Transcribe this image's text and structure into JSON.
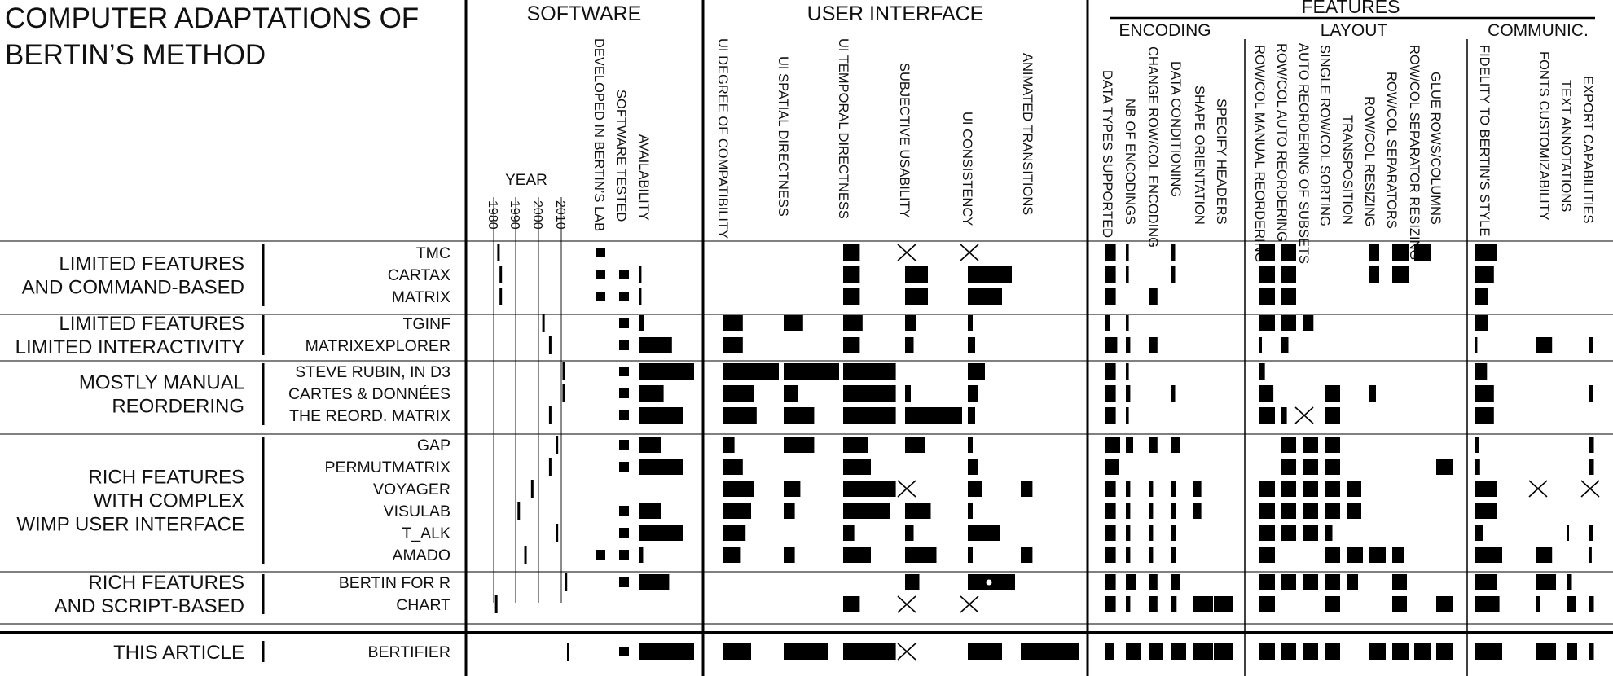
{
  "title_lines": [
    "COMPUTER ADAPTATIONS OF",
    "BERTIN’S METHOD"
  ],
  "chart_data": {
    "type": "table",
    "sections": [
      "SOFTWARE",
      "USER INTERFACE",
      "FEATURES"
    ],
    "feature_groups": [
      "ENCODING",
      "LAYOUT",
      "COMMUNIC."
    ],
    "year_label": "YEAR",
    "year_ticks": [
      "1980",
      "1990",
      "2000",
      "2010"
    ],
    "columns": {
      "software": [
        "DEVELOPED IN BERTIN’S LAB",
        "SOFTWARE TESTED",
        "AVAILABILITY"
      ],
      "ui": [
        "UI DEGREE OF COMPATIBILITY",
        "UI SPATIAL DIRECTNESS",
        "UI TEMPORAL DIRECTNESS",
        "SUBJECTIVE USABILITY",
        "UI CONSISTENCY",
        "ANIMATED TRANSITIONS"
      ],
      "encoding": [
        "DATA TYPES SUPPORTED",
        "NB OF ENCODINGS",
        "CHANGE ROW/COL ENCODING",
        "DATA CONDITIONING",
        "SHAPE ORIENTATION",
        "SPECIFY HEADERS"
      ],
      "layout": [
        "ROW/COL MANUAL REORDERING",
        "ROW/COL AUTO REORDERING",
        "AUTO REORDERING OF SUBSETS",
        "SINGLE ROW/COL SORTING",
        "TRANSPOSITION",
        "ROW/COL RESIZING",
        "ROW/COL SEPARATORS",
        "ROW/COL SEPARATOR RESIZING",
        "GLUE ROWS/COLUMNS"
      ],
      "communic": [
        "FIDELITY TO BERTIN’S STYLE",
        "FONTS CUSTOMIZABILITY",
        "TEXT ANNOTATIONS",
        "EXPORT CAPABILITIES"
      ]
    },
    "categories": [
      {
        "label": [
          "LIMITED FEATURES",
          "AND COMMAND-BASED"
        ],
        "rows": [
          0,
          2
        ]
      },
      {
        "label": [
          "LIMITED FEATURES",
          "LIMITED INTERACTIVITY"
        ],
        "rows": [
          3,
          4
        ]
      },
      {
        "label": [
          "MOSTLY MANUAL",
          "REORDERING"
        ],
        "rows": [
          5,
          7
        ]
      },
      {
        "label": [
          "RICH FEATURES",
          "WITH COMPLEX",
          "WIMP USER INTERFACE"
        ],
        "rows": [
          8,
          13
        ]
      },
      {
        "label": [
          "RICH FEATURES",
          "AND SCRIPT-BASED"
        ],
        "rows": [
          14,
          15
        ]
      },
      {
        "label": [
          "THIS ARTICLE"
        ],
        "rows": [
          16,
          16
        ]
      }
    ],
    "systems": [
      {
        "name": "TMC",
        "year": 1982,
        "dev": 1,
        "tested": 0,
        "avail": 0,
        "ui": [
          0,
          0,
          0.3,
          "x",
          "x",
          0
        ],
        "enc": [
          0.7,
          0.2,
          0,
          0.25,
          0,
          0
        ],
        "lay": [
          1,
          1,
          0,
          0,
          0,
          0.6,
          1,
          1,
          0
        ],
        "com": [
          0.8,
          0,
          0,
          0
        ]
      },
      {
        "name": "CARTAX",
        "year": 1983,
        "dev": 1,
        "tested": 1,
        "avail": 0.05,
        "ui": [
          0,
          0,
          0.3,
          0.4,
          0.9,
          0
        ],
        "enc": [
          0.7,
          0.2,
          0,
          0.25,
          0,
          0
        ],
        "lay": [
          1,
          1,
          0,
          0,
          0,
          0.6,
          1,
          0,
          0
        ],
        "com": [
          0.7,
          0,
          0,
          0
        ]
      },
      {
        "name": "MATRIX",
        "year": 1983,
        "dev": 1,
        "tested": 1,
        "avail": 0.05,
        "ui": [
          0,
          0,
          0.3,
          0.4,
          0.7,
          0
        ],
        "enc": [
          0.7,
          0,
          0.6,
          0,
          0,
          0
        ],
        "lay": [
          1,
          1,
          0,
          0,
          0,
          0,
          0,
          0,
          0
        ],
        "com": [
          0.5,
          0,
          0,
          0
        ]
      },
      {
        "name": "TGINF",
        "year": 2002,
        "dev": 0,
        "tested": 1,
        "avail": 0.1,
        "ui": [
          0.35,
          0.35,
          0.35,
          0.2,
          0.1,
          0
        ],
        "enc": [
          0.3,
          0.2,
          0,
          0,
          0,
          0
        ],
        "lay": [
          1,
          1,
          0.7,
          0,
          0,
          0,
          0,
          0,
          0
        ],
        "com": [
          0.5,
          0,
          0,
          0
        ]
      },
      {
        "name": "MATRIXEXPLORER",
        "year": 2005,
        "dev": 0,
        "tested": 1,
        "avail": 0.6,
        "ui": [
          0.35,
          0,
          0.3,
          0.15,
          0.15,
          0
        ],
        "enc": [
          0.8,
          0.3,
          0.6,
          0,
          0,
          0
        ],
        "lay": [
          0.1,
          0.5,
          0,
          0,
          0,
          0,
          0,
          0,
          0
        ],
        "com": [
          0.1,
          0.8,
          0,
          0.4
        ]
      },
      {
        "name": "STEVE RUBIN, IN D3",
        "year": 2011,
        "dev": 0,
        "tested": 1,
        "avail": 1,
        "ui": [
          1,
          1,
          0.95,
          0,
          0.35,
          0
        ],
        "enc": [
          0.7,
          0.2,
          0,
          0,
          0,
          0
        ],
        "lay": [
          0.35,
          0,
          0,
          0,
          0,
          0,
          0,
          0,
          0
        ],
        "com": [
          0.45,
          0,
          0,
          0
        ]
      },
      {
        "name": "CARTES & DONNÉES",
        "year": 2011,
        "dev": 0,
        "tested": 1,
        "avail": 0.45,
        "ui": [
          0.55,
          0.25,
          0.95,
          0.1,
          0.2,
          0
        ],
        "enc": [
          0.7,
          0.3,
          0,
          0.25,
          0,
          0
        ],
        "lay": [
          0.9,
          0,
          0,
          1,
          0,
          0.4,
          0,
          0,
          0
        ],
        "com": [
          0.7,
          0,
          0,
          0.4
        ]
      },
      {
        "name": "THE REORD. MATRIX",
        "year": 2005,
        "dev": 0,
        "tested": 1,
        "avail": 0.8,
        "ui": [
          0.6,
          0.55,
          0.95,
          1,
          0.15,
          0
        ],
        "enc": [
          0.7,
          0.2,
          0,
          0,
          0,
          0
        ],
        "lay": [
          1,
          0.4,
          "x",
          1,
          0,
          0,
          0,
          0,
          0
        ],
        "com": [
          0.7,
          0,
          0,
          0
        ]
      },
      {
        "name": "GAP",
        "year": 2008,
        "dev": 0,
        "tested": 1,
        "avail": 0.4,
        "ui": [
          0.2,
          0.55,
          0.45,
          0.35,
          0.1,
          0
        ],
        "enc": [
          1,
          0.5,
          0.6,
          0.6,
          0,
          0
        ],
        "lay": [
          0,
          1,
          1,
          1,
          0,
          0,
          0,
          0,
          0
        ],
        "com": [
          0.15,
          0,
          0,
          0.5
        ]
      },
      {
        "name": "PERMUTMATRIX",
        "year": 2005,
        "dev": 0,
        "tested": 1,
        "avail": 0.8,
        "ui": [
          0.35,
          0,
          0.5,
          0,
          0.2,
          0
        ],
        "enc": [
          0.9,
          0,
          0,
          0,
          0,
          0
        ],
        "lay": [
          0,
          1,
          1,
          1,
          0,
          0,
          0,
          0,
          1
        ],
        "com": [
          0.2,
          0,
          0,
          0.5
        ]
      },
      {
        "name": "VOYAGER",
        "year": 1997,
        "dev": 0,
        "tested": 0,
        "avail": 0,
        "ui": [
          0.55,
          0.3,
          0.95,
          "x",
          0.3,
          0.2
        ],
        "enc": [
          0.7,
          0.3,
          0.3,
          0.3,
          0.4,
          0
        ],
        "lay": [
          1,
          1,
          1,
          1,
          0.9,
          0,
          0,
          0,
          0
        ],
        "com": [
          0.8,
          "x",
          0,
          "x"
        ]
      },
      {
        "name": "VISULAB",
        "year": 1991,
        "dev": 0,
        "tested": 1,
        "avail": 0.4,
        "ui": [
          0.5,
          0.2,
          0.85,
          0.45,
          0.1,
          0
        ],
        "enc": [
          0.7,
          0.3,
          0.3,
          0.3,
          0.4,
          0
        ],
        "lay": [
          1,
          1,
          1,
          1,
          0.9,
          0,
          0,
          0,
          0
        ],
        "com": [
          0.8,
          0,
          0,
          0
        ]
      },
      {
        "name": "T_ALK",
        "year": 2008,
        "dev": 0,
        "tested": 1,
        "avail": 0.8,
        "ui": [
          0.4,
          0,
          0.2,
          0.15,
          0.65,
          0
        ],
        "enc": [
          0.7,
          0.3,
          0.3,
          0.3,
          0,
          0
        ],
        "lay": [
          1,
          1,
          1,
          0.5,
          0,
          0,
          0,
          0,
          0
        ],
        "com": [
          0.3,
          0,
          0.2,
          0.4
        ]
      },
      {
        "name": "AMADO",
        "year": 1994,
        "dev": 1,
        "tested": 1,
        "avail": 0.08,
        "ui": [
          0.3,
          0.2,
          0.5,
          0.55,
          0.1,
          0.2
        ],
        "enc": [
          0.7,
          0.3,
          0.3,
          0.3,
          0,
          0
        ],
        "lay": [
          1,
          0,
          0,
          1,
          1,
          1,
          0.7,
          0,
          0
        ],
        "com": [
          1,
          0.8,
          0,
          0.3
        ]
      },
      {
        "name": "BERTIN FOR R",
        "year": 2012,
        "dev": 0,
        "tested": 1,
        "avail": 0.55,
        "ui": [
          0,
          0,
          0,
          0.25,
          "dot",
          0
        ],
        "enc": [
          0.7,
          0.7,
          0.6,
          0.6,
          0,
          0
        ],
        "lay": [
          1,
          1,
          1,
          1,
          0.7,
          0,
          0.9,
          0,
          0
        ],
        "com": [
          0.8,
          1,
          0.5,
          0
        ]
      },
      {
        "name": "CHART",
        "year": 1981,
        "dev": 0,
        "tested": 0,
        "avail": 0,
        "ui": [
          0,
          0,
          0.3,
          "x",
          "x",
          0
        ],
        "enc": [
          0.7,
          0.3,
          0.6,
          0.35,
          1,
          1
        ],
        "lay": [
          1,
          0,
          0,
          1,
          0,
          0,
          0.9,
          0,
          1
        ],
        "com": [
          0.9,
          0.2,
          0.9,
          0.5
        ]
      },
      {
        "name": "BERTIFIER",
        "year": 2013,
        "dev": 0,
        "tested": 1,
        "avail": 1,
        "ui": [
          0.5,
          0.8,
          0.95,
          "x",
          0.7,
          1
        ],
        "enc": [
          0.6,
          1,
          1,
          1,
          1,
          1
        ],
        "lay": [
          1,
          1,
          1,
          1,
          0,
          1,
          1,
          1,
          1
        ],
        "com": [
          1,
          1,
          1,
          0.5
        ]
      }
    ]
  }
}
